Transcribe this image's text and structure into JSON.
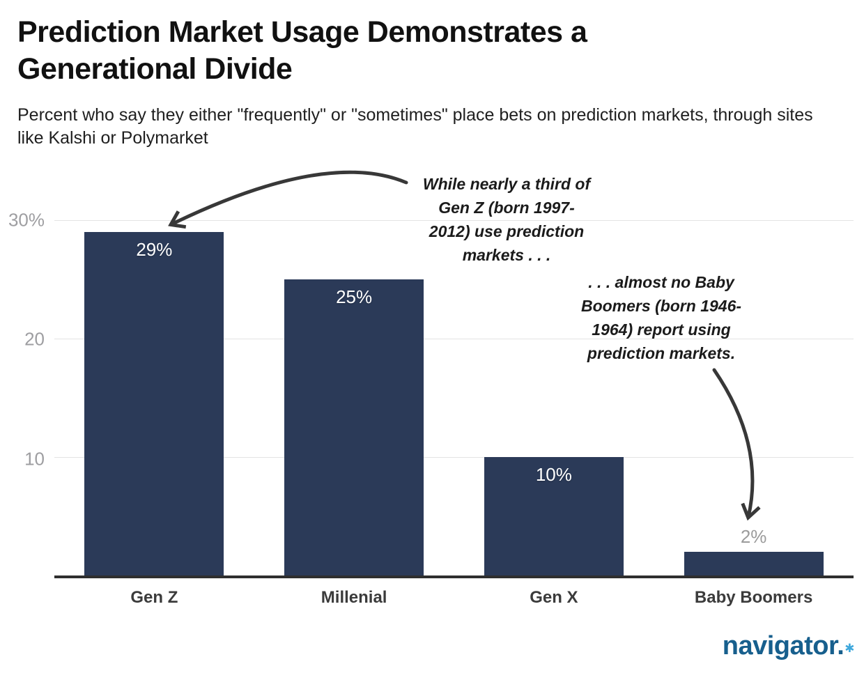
{
  "header": {
    "title": "Prediction Market Usage Demonstrates a Generational Divide",
    "subtitle": "Percent who say they either \"frequently\" or \"sometimes\" place bets on prediction markets, through sites like Kalshi or Polymarket"
  },
  "chart_data": {
    "type": "bar",
    "title": "Prediction Market Usage Demonstrates a Generational Divide",
    "subtitle": "Percent who say they either \"frequently\" or \"sometimes\" place bets on prediction markets, through sites like Kalshi or Polymarket",
    "categories": [
      "Gen Z",
      "Millenial",
      "Gen X",
      "Baby Boomers"
    ],
    "values": [
      29,
      25,
      10,
      2
    ],
    "value_labels": [
      "29%",
      "25%",
      "10%",
      "2%"
    ],
    "label_placements": [
      "inside",
      "inside",
      "inside",
      "above"
    ],
    "xlabel": "",
    "ylabel": "",
    "ylim": [
      0,
      30
    ],
    "y_ticks": [
      {
        "value": 30,
        "label": "30%"
      },
      {
        "value": 20,
        "label": "20"
      },
      {
        "value": 10,
        "label": "10"
      }
    ],
    "grid": "horizontal-light",
    "legend": "none",
    "bar_color": "#2b3a58",
    "annotations": [
      {
        "text": "While nearly a third of\nGen Z (born 1997-\n2012) use prediction\nmarkets . . .",
        "target": "Gen Z bar"
      },
      {
        "text": ". . . almost no Baby\nBoomers (born 1946-\n1964) report using\nprediction markets.",
        "target": "Baby Boomers bar"
      }
    ]
  },
  "logo": {
    "text": "navigator.",
    "star": "✱"
  },
  "colors": {
    "bar": "#2b3a58",
    "gridline": "#e3e3e3",
    "axis_line": "#2f2f2f",
    "tick_label": "#9e9ea1",
    "x_label": "#3b3b3b",
    "title": "#111111",
    "subtitle": "#202020",
    "annotation": "#1b1b1b",
    "arrow": "#383838",
    "bar_value_inside": "#ffffff",
    "bar_value_above": "#9b9b9b",
    "logo": "#175f8d",
    "logo_star": "#3fa8dc"
  }
}
